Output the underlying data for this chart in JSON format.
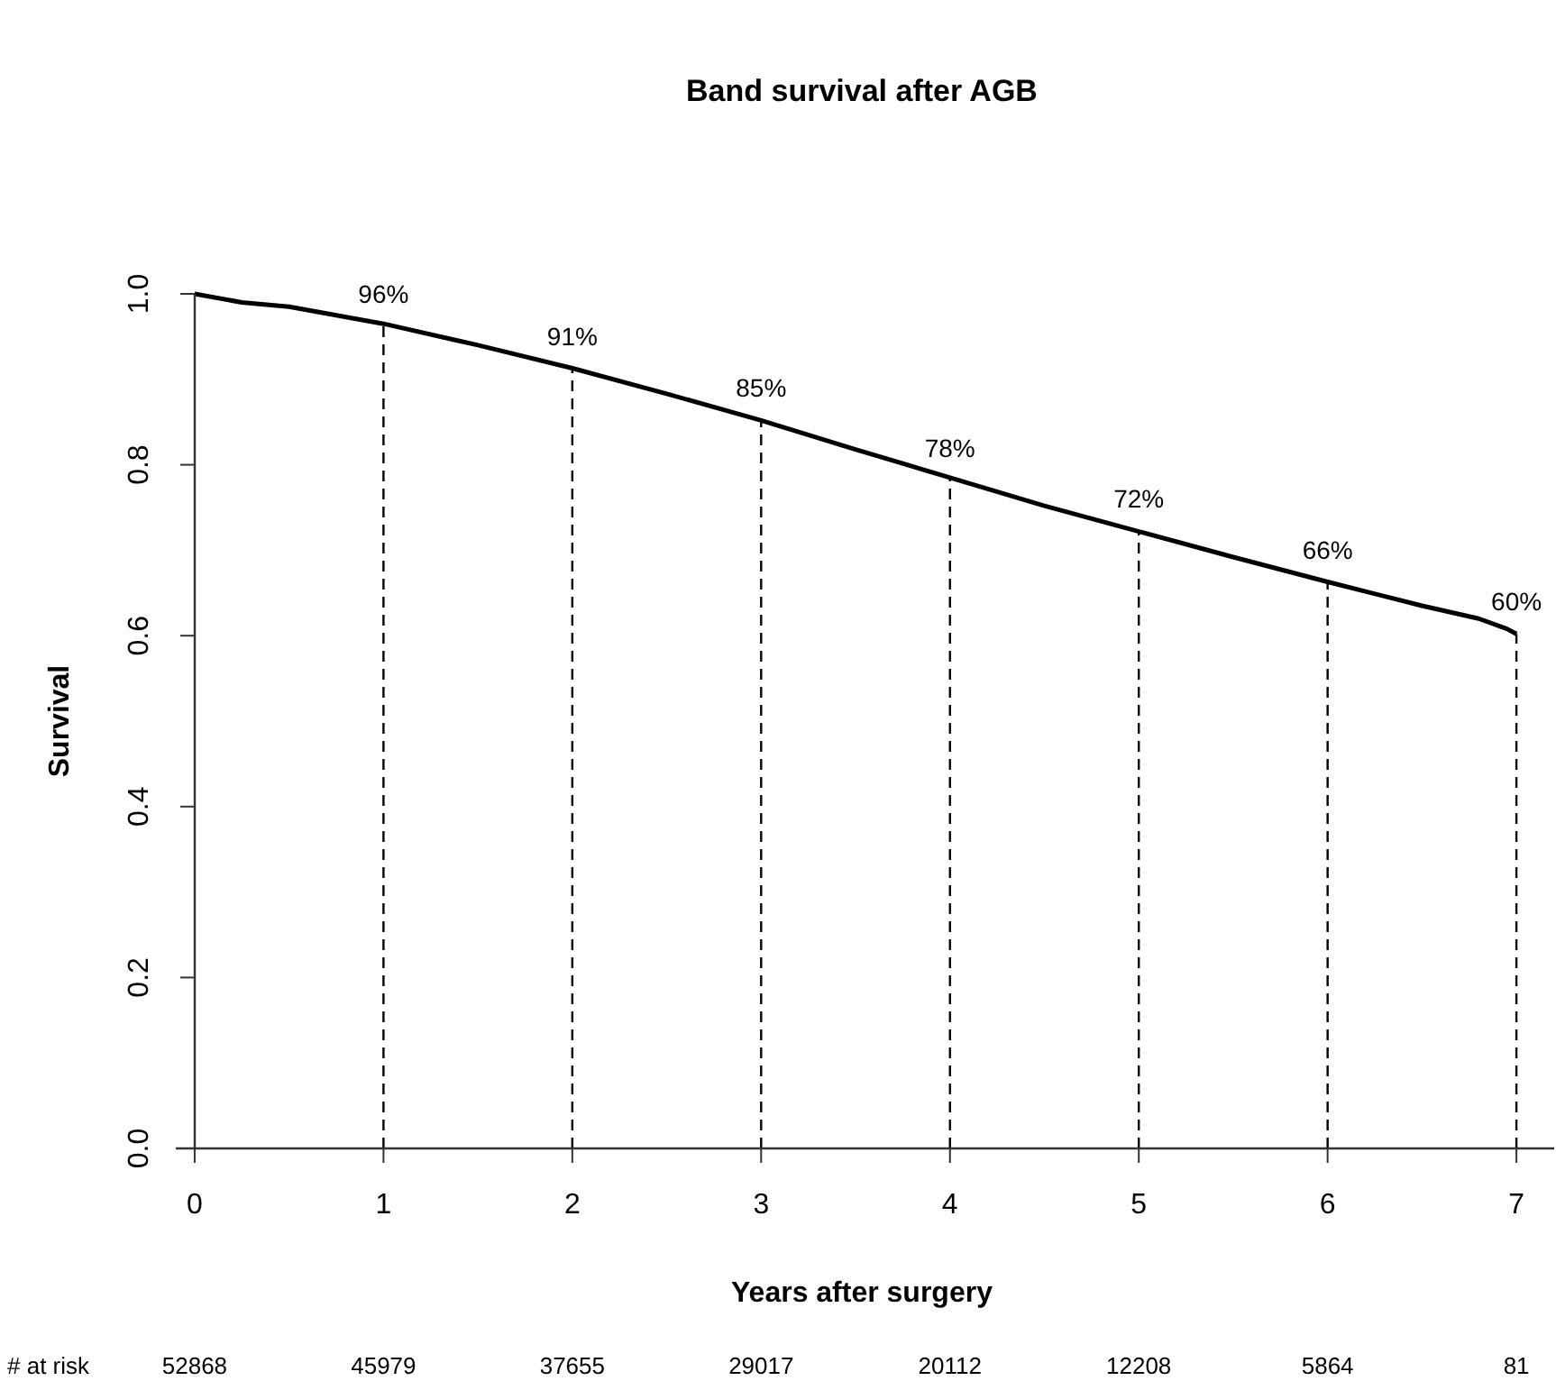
{
  "chart_data": {
    "type": "line",
    "title": "Band survival after AGB",
    "xlabel": "Years after surgery",
    "ylabel": "Survival",
    "x": [
      0,
      0.25,
      0.5,
      0.75,
      1,
      1.5,
      2,
      2.5,
      3,
      3.5,
      4,
      4.5,
      5,
      5.5,
      6,
      6.5,
      6.8,
      6.95,
      7
    ],
    "series": [
      {
        "color": "#000000",
        "values": [
          1.0,
          0.99,
          0.985,
          0.975,
          0.965,
          0.94,
          0.913,
          0.883,
          0.852,
          0.818,
          0.785,
          0.752,
          0.722,
          0.692,
          0.663,
          0.635,
          0.62,
          0.608,
          0.602
        ]
      }
    ],
    "xlim": [
      -0.1,
      7.2
    ],
    "ylim": [
      0,
      1
    ],
    "xticks": [
      0,
      1,
      2,
      3,
      4,
      5,
      6,
      7
    ],
    "yticks": [
      {
        "value": 0,
        "label": "0.0"
      },
      0.2,
      0.4,
      0.6,
      0.8,
      {
        "value": 1,
        "label": "1.0"
      }
    ],
    "grid": false,
    "marker": "none",
    "line_style": "solid",
    "ref_lines": [
      {
        "axis": "x",
        "value": 1,
        "line_style": "dashed",
        "color": "#000000"
      },
      {
        "axis": "x",
        "value": 2,
        "line_style": "dashed",
        "color": "#000000"
      },
      {
        "axis": "x",
        "value": 3,
        "line_style": "dashed",
        "color": "#000000"
      },
      {
        "axis": "x",
        "value": 4,
        "line_style": "dashed",
        "color": "#000000"
      },
      {
        "axis": "x",
        "value": 5,
        "line_style": "dashed",
        "color": "#000000"
      },
      {
        "axis": "x",
        "value": 6,
        "line_style": "dashed",
        "color": "#000000"
      },
      {
        "axis": "x",
        "value": 7,
        "line_style": "dashed",
        "color": "#000000"
      }
    ],
    "annotations": [
      "# at risk",
      "52868",
      "45979",
      "37655",
      "29017",
      "20112",
      "12208",
      "5864",
      "81",
      {
        "text": "96%",
        "x": 1,
        "y": 0.96
      },
      {
        "text": "91%",
        "x": 2,
        "y": 0.91
      },
      {
        "text": "85%",
        "x": 3,
        "y": 0.85
      },
      {
        "text": "78%",
        "x": 4,
        "y": 0.78
      },
      {
        "text": "72%",
        "x": 5,
        "y": 0.72
      },
      {
        "text": "66%",
        "x": 6,
        "y": 0.66
      },
      {
        "text": "60%",
        "x": 7,
        "y": 0.6
      }
    ]
  }
}
